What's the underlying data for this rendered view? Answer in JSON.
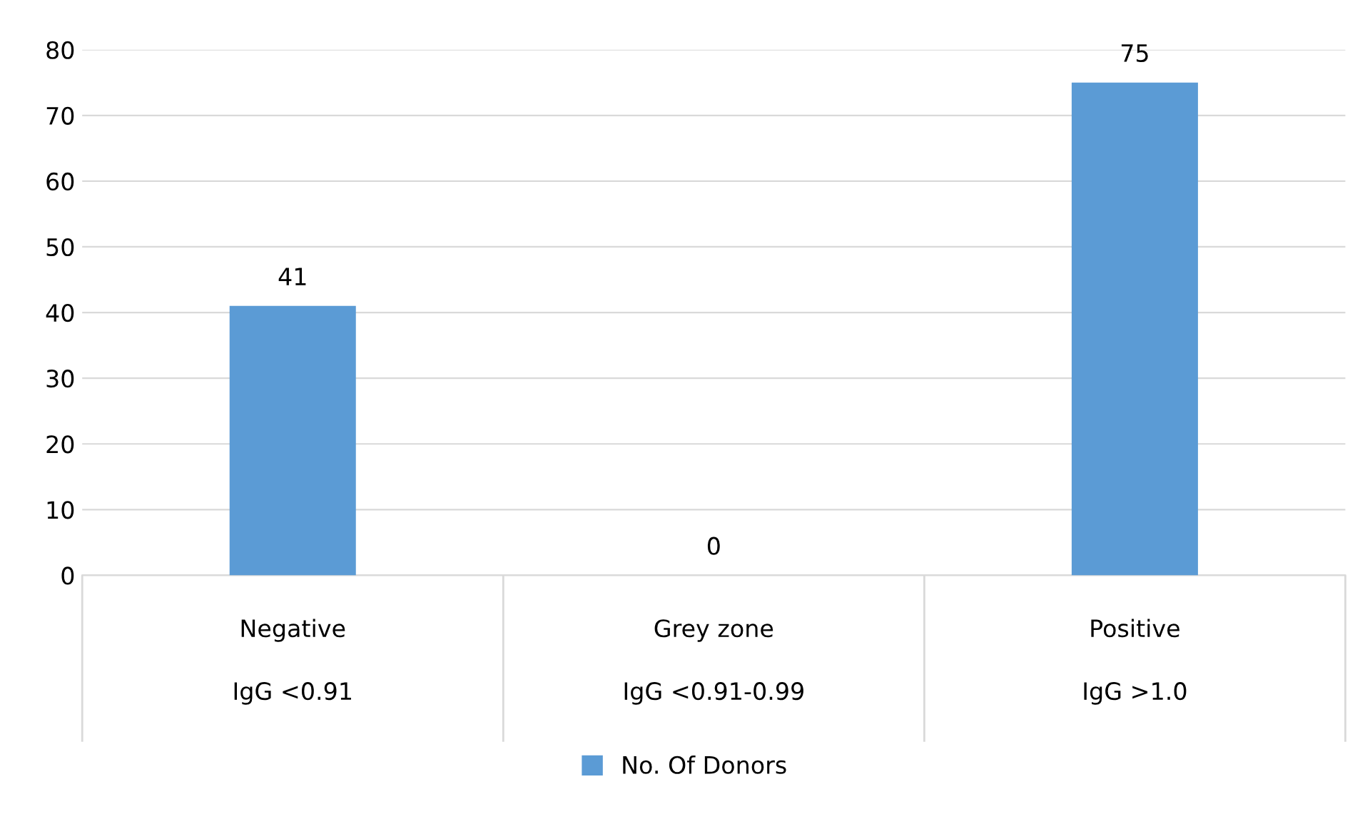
{
  "chart_data": {
    "type": "bar",
    "categories": [
      "Negative\nIgG <0.91",
      "Grey zone\nIgG <0.91-0.99",
      "Positive\nIgG >1.0"
    ],
    "series": [
      {
        "name": "No. Of Donors",
        "color": "#5b9bd5",
        "values": [
          41,
          0,
          75
        ]
      }
    ],
    "ylim": [
      0,
      80
    ],
    "yticks": [
      0,
      10,
      20,
      30,
      40,
      50,
      60,
      70,
      80
    ],
    "grid": "y",
    "legend": "bottom",
    "data_labels": true
  }
}
